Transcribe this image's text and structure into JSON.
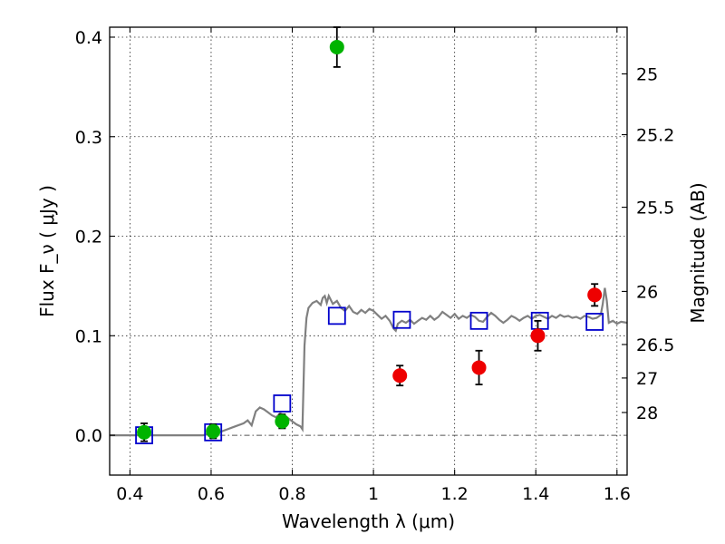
{
  "chart_data": {
    "type": "scatter",
    "title": "",
    "xlabel": "Wavelength  λ (μm)",
    "ylabel": "Flux  F_ν  ( μJy )",
    "ylabel_right": "Magnitude (AB)",
    "xlim": [
      0.35,
      1.625
    ],
    "ylim": [
      -0.04,
      0.41
    ],
    "grid": true,
    "x_ticks": [
      0.4,
      0.6,
      0.8,
      1.0,
      1.2,
      1.4,
      1.6
    ],
    "x_tick_labels": [
      "0.4",
      "0.6",
      "0.8",
      "1",
      "1.2",
      "1.4",
      "1.6"
    ],
    "y_ticks": [
      0.0,
      0.1,
      0.2,
      0.3,
      0.4
    ],
    "y_tick_labels": [
      "0.0",
      "0.1",
      "0.2",
      "0.3",
      "0.4"
    ],
    "right_ticks": [
      {
        "label": "25",
        "value": 25.0
      },
      {
        "label": "25.2",
        "value": 25.2
      },
      {
        "label": "25.5",
        "value": 25.5
      },
      {
        "label": "26",
        "value": 26.0
      },
      {
        "label": "26.5",
        "value": 26.5
      },
      {
        "label": "27",
        "value": 27.0
      },
      {
        "label": "28",
        "value": 28.0
      }
    ],
    "series": [
      {
        "kind": "line",
        "color": "#808080",
        "points": [
          [
            0.35,
            0.0
          ],
          [
            0.58,
            0.0
          ],
          [
            0.6,
            0.002
          ],
          [
            0.62,
            0.003
          ],
          [
            0.64,
            0.006
          ],
          [
            0.66,
            0.009
          ],
          [
            0.68,
            0.012
          ],
          [
            0.69,
            0.015
          ],
          [
            0.7,
            0.01
          ],
          [
            0.71,
            0.024
          ],
          [
            0.72,
            0.028
          ],
          [
            0.73,
            0.026
          ],
          [
            0.74,
            0.023
          ],
          [
            0.75,
            0.02
          ],
          [
            0.76,
            0.018
          ],
          [
            0.77,
            0.022
          ],
          [
            0.78,
            0.02
          ],
          [
            0.79,
            0.017
          ],
          [
            0.8,
            0.014
          ],
          [
            0.81,
            0.011
          ],
          [
            0.82,
            0.009
          ],
          [
            0.825,
            0.006
          ],
          [
            0.83,
            0.09
          ],
          [
            0.835,
            0.118
          ],
          [
            0.84,
            0.128
          ],
          [
            0.85,
            0.133
          ],
          [
            0.86,
            0.135
          ],
          [
            0.87,
            0.131
          ],
          [
            0.875,
            0.138
          ],
          [
            0.88,
            0.14
          ],
          [
            0.885,
            0.133
          ],
          [
            0.89,
            0.14
          ],
          [
            0.9,
            0.132
          ],
          [
            0.91,
            0.135
          ],
          [
            0.92,
            0.128
          ],
          [
            0.93,
            0.125
          ],
          [
            0.94,
            0.13
          ],
          [
            0.95,
            0.124
          ],
          [
            0.96,
            0.122
          ],
          [
            0.97,
            0.126
          ],
          [
            0.98,
            0.123
          ],
          [
            0.99,
            0.127
          ],
          [
            1.0,
            0.125
          ],
          [
            1.01,
            0.121
          ],
          [
            1.02,
            0.117
          ],
          [
            1.03,
            0.12
          ],
          [
            1.04,
            0.115
          ],
          [
            1.05,
            0.107
          ],
          [
            1.055,
            0.105
          ],
          [
            1.06,
            0.112
          ],
          [
            1.07,
            0.115
          ],
          [
            1.08,
            0.113
          ],
          [
            1.09,
            0.116
          ],
          [
            1.1,
            0.112
          ],
          [
            1.11,
            0.115
          ],
          [
            1.12,
            0.118
          ],
          [
            1.13,
            0.116
          ],
          [
            1.14,
            0.12
          ],
          [
            1.15,
            0.116
          ],
          [
            1.16,
            0.119
          ],
          [
            1.17,
            0.124
          ],
          [
            1.18,
            0.121
          ],
          [
            1.19,
            0.118
          ],
          [
            1.2,
            0.122
          ],
          [
            1.21,
            0.117
          ],
          [
            1.22,
            0.12
          ],
          [
            1.23,
            0.118
          ],
          [
            1.24,
            0.121
          ],
          [
            1.25,
            0.119
          ],
          [
            1.26,
            0.115
          ],
          [
            1.27,
            0.114
          ],
          [
            1.28,
            0.119
          ],
          [
            1.29,
            0.123
          ],
          [
            1.3,
            0.12
          ],
          [
            1.31,
            0.116
          ],
          [
            1.32,
            0.113
          ],
          [
            1.33,
            0.116
          ],
          [
            1.34,
            0.12
          ],
          [
            1.35,
            0.118
          ],
          [
            1.36,
            0.115
          ],
          [
            1.37,
            0.118
          ],
          [
            1.38,
            0.12
          ],
          [
            1.39,
            0.117
          ],
          [
            1.4,
            0.12
          ],
          [
            1.41,
            0.121
          ],
          [
            1.42,
            0.119
          ],
          [
            1.43,
            0.117
          ],
          [
            1.44,
            0.12
          ],
          [
            1.45,
            0.118
          ],
          [
            1.46,
            0.121
          ],
          [
            1.47,
            0.119
          ],
          [
            1.48,
            0.12
          ],
          [
            1.49,
            0.118
          ],
          [
            1.5,
            0.119
          ],
          [
            1.51,
            0.117
          ],
          [
            1.52,
            0.12
          ],
          [
            1.53,
            0.119
          ],
          [
            1.54,
            0.117
          ],
          [
            1.55,
            0.118
          ],
          [
            1.56,
            0.121
          ],
          [
            1.565,
            0.132
          ],
          [
            1.57,
            0.148
          ],
          [
            1.575,
            0.135
          ],
          [
            1.58,
            0.113
          ],
          [
            1.59,
            0.115
          ],
          [
            1.6,
            0.112
          ],
          [
            1.61,
            0.114
          ],
          [
            1.625,
            0.113
          ]
        ]
      },
      {
        "kind": "squares",
        "color": "#0000cc",
        "points": [
          {
            "x": 0.435,
            "y": 0.0
          },
          {
            "x": 0.605,
            "y": 0.003
          },
          {
            "x": 0.775,
            "y": 0.032
          },
          {
            "x": 0.91,
            "y": 0.12
          },
          {
            "x": 1.07,
            "y": 0.116
          },
          {
            "x": 1.26,
            "y": 0.115
          },
          {
            "x": 1.41,
            "y": 0.115
          },
          {
            "x": 1.545,
            "y": 0.114
          }
        ]
      },
      {
        "kind": "points",
        "color": "#00b300",
        "points": [
          {
            "x": 0.435,
            "y": 0.003,
            "err": 0.009
          },
          {
            "x": 0.605,
            "y": 0.004,
            "err": 0.007
          },
          {
            "x": 0.775,
            "y": 0.014,
            "err": 0.007
          },
          {
            "x": 0.91,
            "y": 0.39,
            "err": 0.02
          }
        ]
      },
      {
        "kind": "points",
        "color": "#ee0000",
        "points": [
          {
            "x": 1.065,
            "y": 0.06,
            "err": 0.01
          },
          {
            "x": 1.26,
            "y": 0.068,
            "err": 0.017
          },
          {
            "x": 1.405,
            "y": 0.1,
            "err": 0.015
          },
          {
            "x": 1.545,
            "y": 0.141,
            "err": 0.011
          }
        ]
      }
    ]
  }
}
